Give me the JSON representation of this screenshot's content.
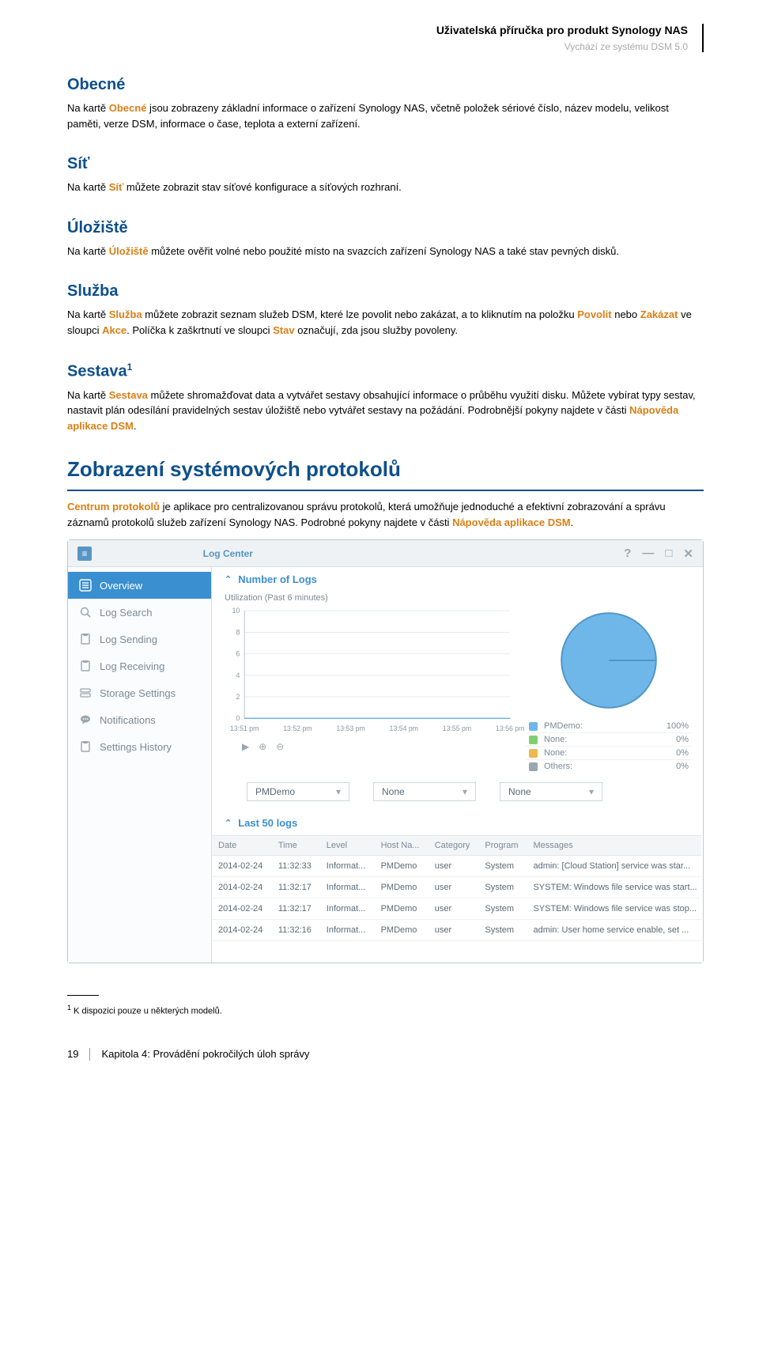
{
  "header": {
    "title": "Uživatelská příručka pro produkt Synology NAS",
    "subtitle": "Vychází ze systému DSM 5.0"
  },
  "sections": {
    "obecne": {
      "title": "Obecné",
      "text_a": "Na kartě ",
      "term": "Obecné",
      "text_b": " jsou zobrazeny základní informace o zařízení Synology NAS, včetně položek sériové číslo, název modelu, velikost paměti, verze DSM, informace o čase, teplota a externí zařízení."
    },
    "sit": {
      "title": "Síť",
      "text_a": "Na kartě ",
      "term": "Síť",
      "text_b": " můžete zobrazit stav síťové konfigurace a síťových rozhraní."
    },
    "uloziste": {
      "title": "Úložiště",
      "text_a": "Na kartě ",
      "term": "Úložiště",
      "text_b": " můžete ověřit volné nebo použité místo na svazcích zařízení Synology NAS a také stav pevných disků."
    },
    "sluzba": {
      "title": "Služba",
      "text_a": "Na kartě ",
      "term1": "Služba",
      "text_b": " můžete zobrazit seznam služeb DSM, které lze povolit nebo zakázat, a to kliknutím na položku ",
      "term2": "Povolit",
      "text_c": " nebo ",
      "term3": "Zakázat",
      "text_d": " ve sloupci ",
      "term4": "Akce",
      "text_e": ". Políčka k zaškrtnutí ve sloupci ",
      "term5": "Stav",
      "text_f": " označují, zda jsou služby povoleny."
    },
    "sestava": {
      "title": "Sestava",
      "sup": "1",
      "text_a": "Na kartě ",
      "term": "Sestava",
      "text_b": " můžete shromažďovat data a vytvářet sestavy obsahující informace o průběhu využití disku. Můžete vybírat typy sestav, nastavit plán odesílání pravidelných sestav úložiště nebo vytvářet sestavy na požádání. Podrobnější pokyny najdete v části ",
      "term2": "Nápověda aplikace DSM",
      "text_c": "."
    },
    "protokoly": {
      "title": "Zobrazení systémových protokolů",
      "term1": "Centrum protokolů",
      "text_a": " je aplikace pro centralizovanou správu protokolů, která umožňuje jednoduché a efektivní zobrazování a správu záznamů protokolů služeb zařízení Synology NAS. Podrobné pokyny najdete v části ",
      "term2": "Nápověda aplikace DSM",
      "text_b": "."
    }
  },
  "app": {
    "title": "Log Center",
    "sidebar": [
      "Overview",
      "Log Search",
      "Log Sending",
      "Log Receiving",
      "Storage Settings",
      "Notifications",
      "Settings History"
    ],
    "panel1_title": "Number of Logs",
    "util_label": "Utilization (Past 6 minutes)",
    "chart": {
      "ymax": 10,
      "yticks": [
        0,
        2,
        4,
        6,
        8,
        10
      ],
      "xticks": [
        "13:51 pm",
        "13:52 pm",
        "13:53 pm",
        "13:54 pm",
        "13:55 pm",
        "13:56 pm"
      ],
      "line_color": "#6fb7e8",
      "grid_color": "#e7ebef",
      "axis_color": "#b9c3cb"
    },
    "pie": {
      "fill": "#6fb7e8",
      "stroke": "#4f95c8"
    },
    "legend": [
      {
        "label": "PMDemo:",
        "value": "100%",
        "color": "#6fb7e8"
      },
      {
        "label": "None:",
        "value": "0%",
        "color": "#7fcf6f"
      },
      {
        "label": "None:",
        "value": "0%",
        "color": "#f0b84d"
      },
      {
        "label": "Others:",
        "value": "0%",
        "color": "#9aa7b1"
      }
    ],
    "dropdowns": [
      "PMDemo",
      "None",
      "None"
    ],
    "panel2_title": "Last 50 logs",
    "columns": [
      "Date",
      "Time",
      "Level",
      "Host Na...",
      "Category",
      "Program",
      "Messages"
    ],
    "rows": [
      [
        "2014-02-24",
        "11:32:33",
        "Informat...",
        "PMDemo",
        "user",
        "System",
        "admin: [Cloud Station] service was star..."
      ],
      [
        "2014-02-24",
        "11:32:17",
        "Informat...",
        "PMDemo",
        "user",
        "System",
        "SYSTEM: Windows file service was start..."
      ],
      [
        "2014-02-24",
        "11:32:17",
        "Informat...",
        "PMDemo",
        "user",
        "System",
        "SYSTEM: Windows file service was stop..."
      ],
      [
        "2014-02-24",
        "11:32:16",
        "Informat...",
        "PMDemo",
        "user",
        "System",
        "admin: User home service enable, set ..."
      ]
    ]
  },
  "footnote": {
    "num": "1",
    "text": " K dispozici pouze u některých modelů."
  },
  "footer": {
    "page": "19",
    "chapter": "Kapitola 4: Provádění pokročilých úloh správy"
  }
}
